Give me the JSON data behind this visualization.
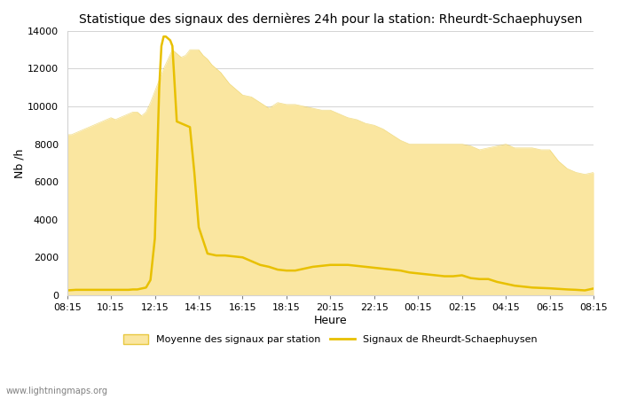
{
  "title": "Statistique des signaux des dernières 24h pour la station: Rheurdt-Schaephuysen",
  "xlabel": "Heure",
  "ylabel": "Nb /h",
  "watermark": "www.lightningmaps.org",
  "x_ticks": [
    "08:15",
    "10:15",
    "12:15",
    "14:15",
    "16:15",
    "18:15",
    "20:15",
    "22:15",
    "00:15",
    "02:15",
    "04:15",
    "06:15",
    "08:15"
  ],
  "ylim": [
    0,
    14000
  ],
  "yticks": [
    0,
    2000,
    4000,
    6000,
    8000,
    10000,
    12000,
    14000
  ],
  "fill_color": "#FAE6A0",
  "fill_edge_color": "#E8C840",
  "line_color": "#E8C000",
  "line_width": 1.8,
  "legend_fill_label": "Moyenne des signaux par station",
  "legend_line_label": "Signaux de Rheurdt-Schaephuysen",
  "avg_x": [
    0.0,
    0.1,
    0.2,
    0.3,
    0.4,
    0.5,
    0.6,
    0.7,
    0.8,
    0.9,
    1.0,
    1.1,
    1.2,
    1.3,
    1.4,
    1.5,
    1.6,
    1.7,
    1.8,
    1.9,
    2.0,
    2.1,
    2.2,
    2.3,
    2.4,
    2.5,
    2.6,
    2.7,
    2.8,
    2.9,
    3.0,
    3.1,
    3.2,
    3.3,
    3.4,
    3.5,
    3.6,
    3.7,
    3.8,
    3.9,
    4.0,
    4.2,
    4.4,
    4.6,
    4.8,
    5.0,
    5.2,
    5.4,
    5.6,
    5.8,
    6.0,
    6.2,
    6.4,
    6.6,
    6.8,
    7.0,
    7.2,
    7.4,
    7.6,
    7.8,
    8.0,
    8.2,
    8.4,
    8.6,
    8.8,
    9.0,
    9.2,
    9.4,
    9.6,
    9.8,
    10.0,
    10.2,
    10.4,
    10.6,
    10.8,
    11.0,
    11.2,
    11.4,
    11.6,
    11.8,
    12.0
  ],
  "avg_y": [
    8500,
    8500,
    8600,
    8700,
    8800,
    8900,
    9000,
    9100,
    9200,
    9300,
    9400,
    9300,
    9400,
    9500,
    9600,
    9700,
    9700,
    9500,
    9700,
    10200,
    10800,
    11400,
    12000,
    12500,
    13000,
    12800,
    12600,
    12700,
    13000,
    13000,
    13000,
    12700,
    12500,
    12200,
    12000,
    11800,
    11500,
    11200,
    11000,
    10800,
    10600,
    10500,
    10200,
    9900,
    10200,
    10100,
    10100,
    10000,
    9900,
    9800,
    9800,
    9600,
    9400,
    9300,
    9100,
    9000,
    8800,
    8500,
    8200,
    8000,
    8000,
    8000,
    8000,
    8000,
    8000,
    8000,
    7900,
    7700,
    7800,
    7900,
    8000,
    7800,
    7800,
    7800,
    7700,
    7700,
    7100,
    6700,
    6500,
    6400,
    6500
  ],
  "sta_x": [
    0.0,
    0.2,
    0.4,
    0.6,
    0.8,
    1.0,
    1.2,
    1.4,
    1.5,
    1.6,
    1.7,
    1.8,
    1.9,
    2.0,
    2.05,
    2.1,
    2.15,
    2.2,
    2.25,
    2.3,
    2.35,
    2.4,
    2.5,
    2.6,
    2.7,
    2.8,
    2.9,
    3.0,
    3.2,
    3.4,
    3.6,
    3.8,
    4.0,
    4.2,
    4.4,
    4.6,
    4.8,
    5.0,
    5.2,
    5.4,
    5.6,
    5.8,
    6.0,
    6.2,
    6.4,
    6.6,
    6.8,
    7.0,
    7.2,
    7.4,
    7.6,
    7.8,
    8.0,
    8.2,
    8.4,
    8.6,
    8.8,
    9.0,
    9.2,
    9.4,
    9.6,
    9.8,
    10.0,
    10.2,
    10.4,
    10.6,
    10.8,
    11.0,
    11.2,
    11.4,
    11.6,
    11.8,
    12.0
  ],
  "sta_y": [
    250,
    280,
    280,
    280,
    280,
    280,
    280,
    280,
    300,
    300,
    350,
    400,
    800,
    3000,
    7000,
    11000,
    13200,
    13700,
    13700,
    13600,
    13500,
    13200,
    9200,
    9100,
    9000,
    8900,
    6500,
    3600,
    2200,
    2100,
    2100,
    2050,
    2000,
    1800,
    1600,
    1500,
    1350,
    1300,
    1300,
    1400,
    1500,
    1550,
    1600,
    1600,
    1600,
    1550,
    1500,
    1450,
    1400,
    1350,
    1300,
    1200,
    1150,
    1100,
    1050,
    1000,
    1000,
    1050,
    900,
    850,
    850,
    700,
    600,
    500,
    450,
    400,
    380,
    360,
    330,
    300,
    280,
    250,
    350
  ]
}
